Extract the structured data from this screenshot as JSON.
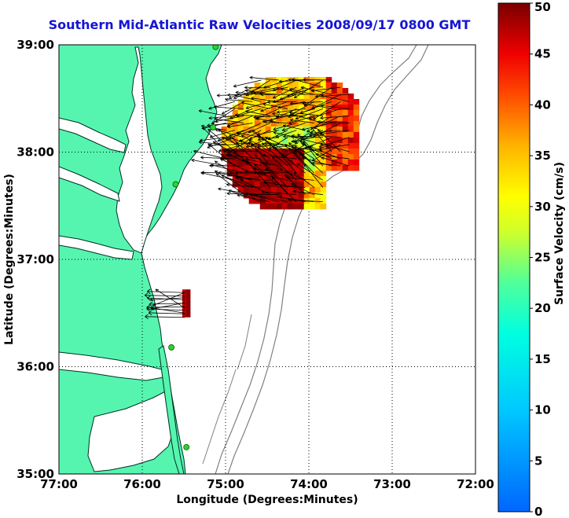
{
  "title": "Southern Mid-Atlantic Raw Velocities 2008/09/17 0800 GMT",
  "map": {
    "x_label": "Longitude (Degrees:Minutes)",
    "y_label": "Latitude (Degrees:Minutes)",
    "lon_range": [
      -77,
      -72
    ],
    "lat_range": [
      35,
      39
    ],
    "lon_ticks": [
      {
        "value": -77,
        "label": "77:00"
      },
      {
        "value": -76,
        "label": "76:00"
      },
      {
        "value": -75,
        "label": "75:00"
      },
      {
        "value": -74,
        "label": "74:00"
      },
      {
        "value": -73,
        "label": "73:00"
      },
      {
        "value": -72,
        "label": "72:00"
      }
    ],
    "lat_ticks": [
      {
        "value": 35,
        "label": "35:00"
      },
      {
        "value": 36,
        "label": "36:00"
      },
      {
        "value": 37,
        "label": "37:00"
      },
      {
        "value": 38,
        "label": "38:00"
      },
      {
        "value": 39,
        "label": "39:00"
      }
    ],
    "grid": true,
    "land_color": "#55f5b0",
    "ocean_color": "#ffffff",
    "station_color": "#2fd22f",
    "stations": [
      {
        "lon": -75.12,
        "lat": 38.98
      },
      {
        "lon": -75.15,
        "lat": 38.23
      },
      {
        "lon": -75.6,
        "lat": 37.7
      },
      {
        "lon": -75.65,
        "lat": 36.18
      },
      {
        "lon": -75.47,
        "lat": 35.25
      }
    ]
  },
  "colorbar": {
    "label": "Surface Velocity (cm/s)",
    "min": 0,
    "max": 50,
    "ticks": [
      "0",
      "5",
      "10",
      "15",
      "20",
      "25",
      "30",
      "35",
      "40",
      "45",
      "50"
    ]
  },
  "velocity_field": {
    "units": "cm/s",
    "north_patch": {
      "lon_range": [
        -75.05,
        -73.45
      ],
      "lat_range": [
        37.5,
        38.7
      ],
      "dominant_direction": "westward",
      "speed_range": [
        20,
        50
      ]
    },
    "south_patch": {
      "lon_range": [
        -75.85,
        -75.45
      ],
      "lat_range": [
        36.48,
        36.72
      ],
      "dominant_direction": "westward",
      "speed_range": [
        35,
        50
      ]
    }
  }
}
